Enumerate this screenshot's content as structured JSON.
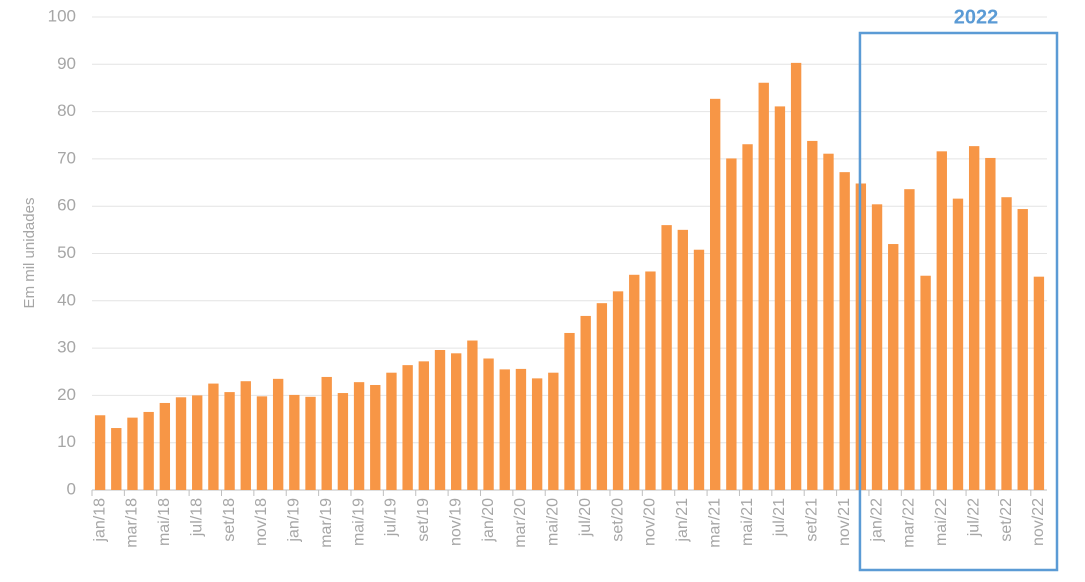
{
  "chart_data": {
    "type": "bar",
    "ylabel": "Em mil unidades",
    "annotation": "2022",
    "categories": [
      "jan/18",
      null,
      "mar/18",
      null,
      "mai/18",
      null,
      "jul/18",
      null,
      "set/18",
      null,
      "nov/18",
      null,
      "jan/19",
      null,
      "mar/19",
      null,
      "mai/19",
      null,
      "jul/19",
      null,
      "set/19",
      null,
      "nov/19",
      null,
      "jan/20",
      null,
      "mar/20",
      null,
      "mai/20",
      null,
      "jul/20",
      null,
      "set/20",
      null,
      "nov/20",
      null,
      "jan/21",
      null,
      "mar/21",
      null,
      "mai/21",
      null,
      "jul/21",
      null,
      "set/21",
      null,
      "nov/21",
      null,
      "jan/22",
      null,
      "mar/22",
      null,
      "mai/22",
      null,
      "jul/22",
      null,
      "set/22",
      null,
      "nov/22"
    ],
    "values": [
      15.8,
      13.1,
      15.3,
      16.5,
      18.4,
      19.6,
      20.0,
      22.5,
      20.7,
      23.0,
      19.8,
      23.5,
      20.1,
      19.7,
      23.9,
      20.5,
      22.8,
      22.2,
      24.8,
      26.4,
      27.2,
      29.6,
      28.9,
      31.6,
      27.8,
      25.5,
      25.6,
      23.6,
      24.8,
      33.2,
      36.8,
      39.5,
      42.0,
      45.5,
      46.2,
      56.0,
      55.0,
      50.8,
      82.7,
      70.1,
      73.1,
      86.1,
      81.1,
      90.3,
      73.8,
      71.1,
      67.2,
      64.8,
      60.4,
      52.0,
      63.6,
      45.3,
      71.6,
      61.6,
      72.7,
      70.2,
      61.9,
      59.4,
      45.1
    ],
    "color": "#f79646",
    "ylim": [
      0,
      100
    ],
    "yticks": [
      0,
      10,
      20,
      30,
      40,
      50,
      60,
      70,
      80,
      90,
      100
    ],
    "grid": true
  }
}
